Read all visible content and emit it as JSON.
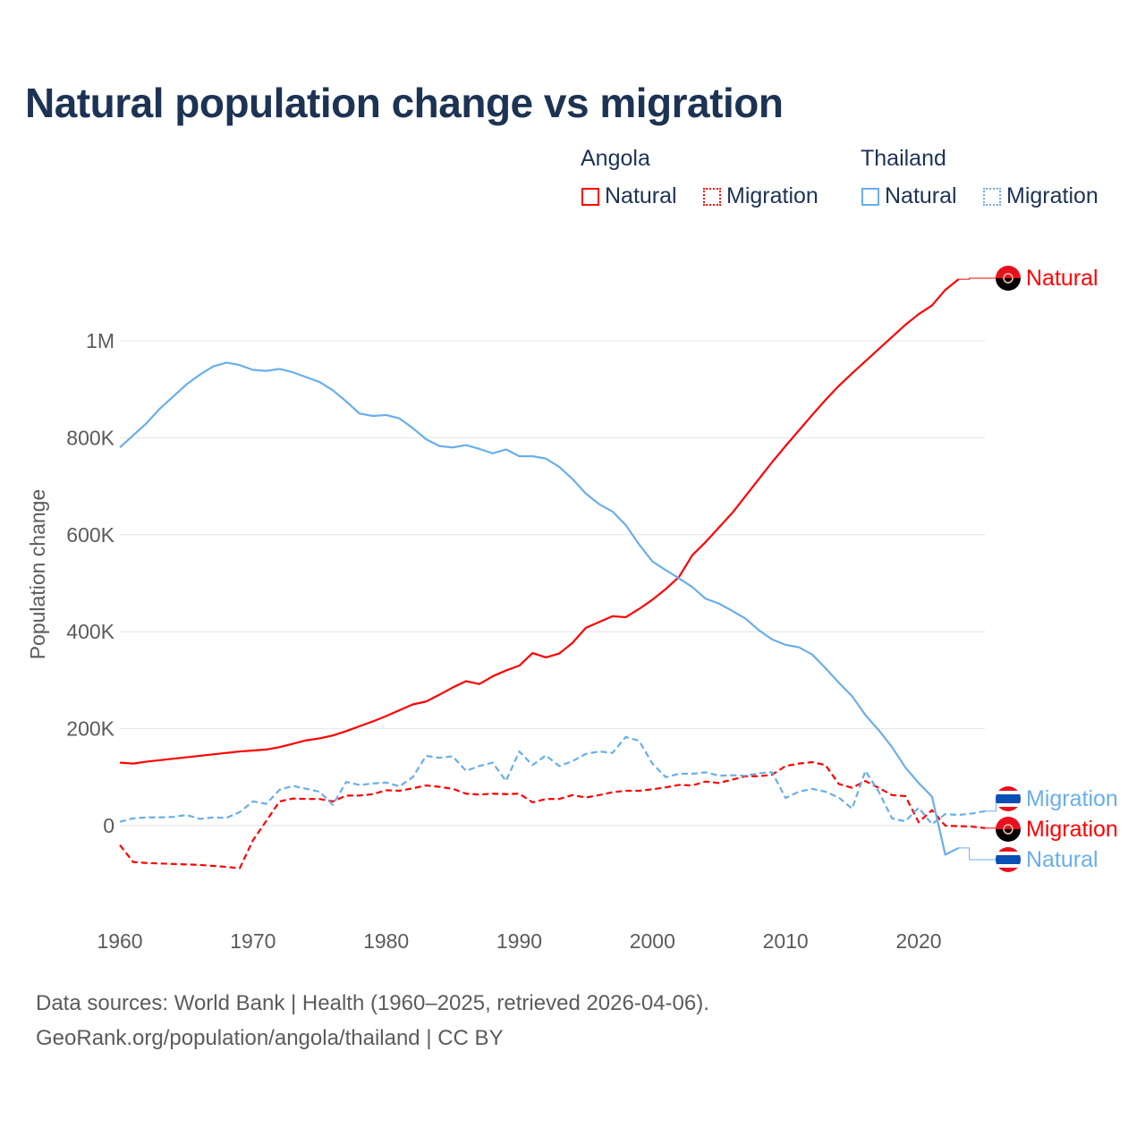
{
  "title": "Natural population change vs migration",
  "legend": {
    "groups": [
      {
        "name": "Angola",
        "items": [
          "Natural",
          "Migration"
        ],
        "color": "#ff0000"
      },
      {
        "name": "Thailand",
        "items": [
          "Natural",
          "Migration"
        ],
        "color": "#6aaeea"
      }
    ]
  },
  "footer": {
    "line1": "Data sources: World Bank | Health (1960–2025, retrieved 2026-04-06).",
    "line2": "GeoRank.org/population/angola/thailand | CC BY"
  },
  "chart_data": {
    "type": "line",
    "title": "Natural population change vs migration",
    "xlabel": "",
    "ylabel": "Population change",
    "xlim": [
      1960,
      2025
    ],
    "ylim": [
      -180000,
      1200000
    ],
    "x_ticks": [
      1960,
      1970,
      1980,
      1990,
      2000,
      2010,
      2020
    ],
    "y_ticks": [
      0,
      200000,
      400000,
      600000,
      800000,
      1000000
    ],
    "y_tick_labels": [
      "0",
      "200K",
      "400K",
      "600K",
      "800K",
      "1M"
    ],
    "grid": true,
    "start_year": 1960,
    "series": [
      {
        "name": "Angola Natural",
        "label": "Natural",
        "country": "Angola",
        "color": "#ff0000",
        "dashed": false,
        "flag": "angola",
        "values_thousands": [
          130,
          128,
          132,
          135,
          138,
          141,
          144,
          147,
          150,
          153,
          155,
          157,
          162,
          169,
          176,
          180,
          186,
          195,
          205,
          215,
          226,
          238,
          250,
          256,
          270,
          285,
          298,
          292,
          308,
          320,
          330,
          356,
          347,
          355,
          377,
          408,
          420,
          432,
          430,
          447,
          466,
          488,
          513,
          558,
          585,
          615,
          645,
          680,
          715,
          750,
          783,
          815,
          847,
          878,
          907,
          933,
          958,
          983,
          1008,
          1033,
          1055,
          1073,
          1105,
          1127
        ]
      },
      {
        "name": "Angola Migration",
        "label": "Migration",
        "country": "Angola",
        "color": "#ff0000",
        "dashed": true,
        "flag": "angola",
        "values_thousands": [
          -40,
          -75,
          -77,
          -78,
          -79,
          -80,
          -81,
          -83,
          -85,
          -88,
          -30,
          10,
          50,
          56,
          55,
          55,
          50,
          62,
          62,
          65,
          73,
          72,
          77,
          83,
          80,
          76,
          66,
          64,
          66,
          65,
          66,
          48,
          55,
          55,
          63,
          58,
          63,
          69,
          72,
          72,
          75,
          79,
          84,
          83,
          91,
          88,
          95,
          102,
          102,
          105,
          123,
          128,
          131,
          125,
          86,
          78,
          92,
          78,
          63,
          61,
          7,
          32,
          0,
          -1,
          -2,
          -5
        ]
      },
      {
        "name": "Thailand Natural",
        "label": "Natural",
        "country": "Thailand",
        "color": "#6aaeea",
        "dashed": false,
        "flag": "thailand",
        "values_thousands": [
          780,
          805,
          830,
          860,
          885,
          910,
          930,
          947,
          955,
          950,
          940,
          938,
          942,
          935,
          925,
          915,
          898,
          875,
          850,
          845,
          847,
          840,
          820,
          797,
          783,
          780,
          785,
          777,
          768,
          776,
          762,
          762,
          757,
          740,
          715,
          685,
          663,
          648,
          620,
          580,
          545,
          527,
          510,
          492,
          468,
          458,
          443,
          427,
          403,
          384,
          373,
          368,
          353,
          325,
          295,
          267,
          228,
          197,
          162,
          120,
          88,
          60,
          -60,
          -46
        ]
      },
      {
        "name": "Thailand Migration",
        "label": "Migration",
        "country": "Thailand",
        "color": "#6aaeea",
        "dashed": true,
        "flag": "thailand",
        "values_thousands": [
          8,
          15,
          17,
          17,
          18,
          22,
          14,
          17,
          16,
          28,
          50,
          45,
          74,
          82,
          76,
          70,
          43,
          90,
          84,
          87,
          89,
          81,
          100,
          144,
          140,
          143,
          113,
          123,
          130,
          92,
          153,
          125,
          145,
          123,
          133,
          148,
          153,
          150,
          183,
          175,
          128,
          100,
          107,
          107,
          110,
          103,
          104,
          103,
          108,
          110,
          57,
          70,
          76,
          70,
          58,
          35,
          113,
          70,
          15,
          9,
          37,
          3,
          24,
          22,
          25,
          30
        ]
      }
    ]
  }
}
